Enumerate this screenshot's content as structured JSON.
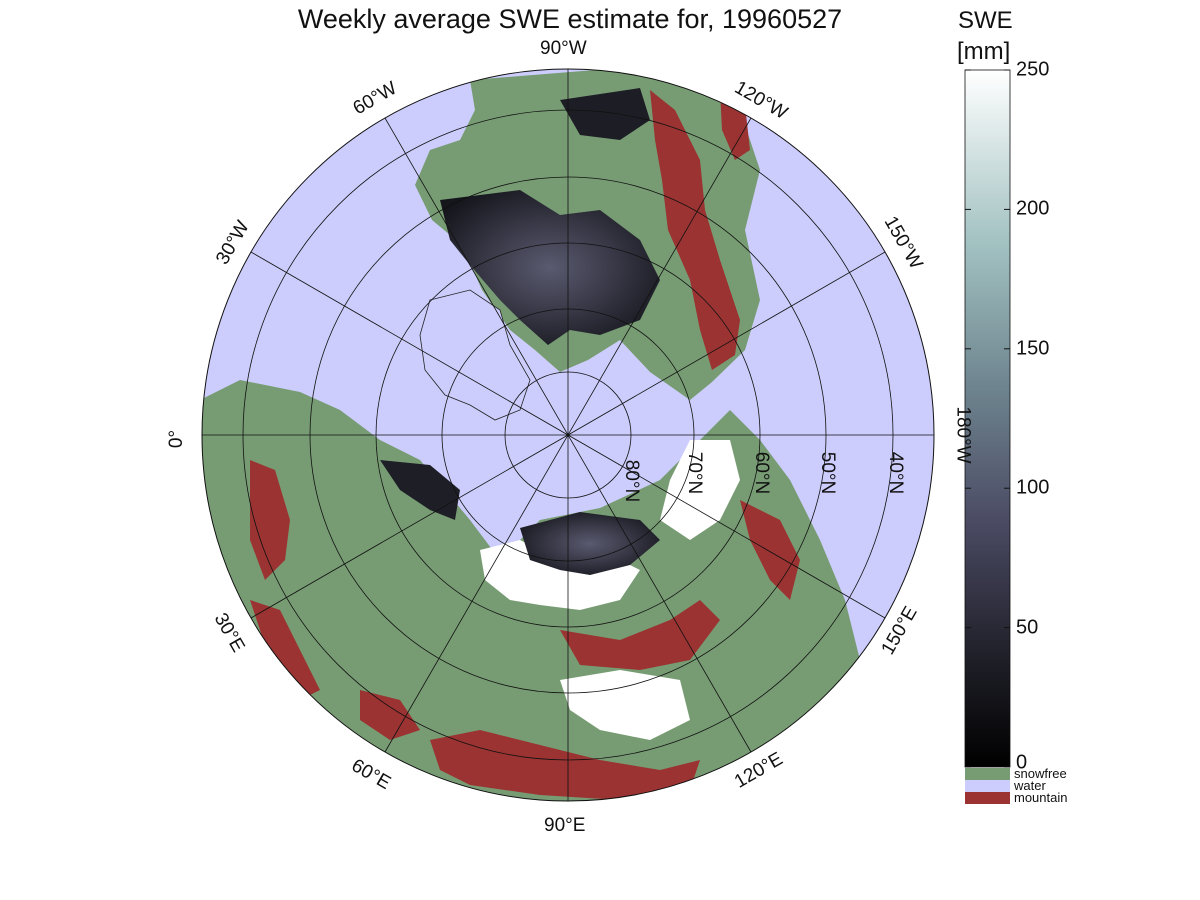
{
  "title": "Weekly average SWE estimate for, 19960527",
  "colorbar": {
    "title": "SWE",
    "unit": "[mm]",
    "ticks": [
      "0",
      "50",
      "100",
      "150",
      "200",
      "250"
    ],
    "tick_values": [
      0,
      50,
      100,
      150,
      200,
      250
    ],
    "range": [
      0,
      250
    ],
    "categories": [
      {
        "label": "snowfree",
        "color": "#779c73"
      },
      {
        "label": "water",
        "color": "#cccdfc"
      },
      {
        "label": "mountain",
        "color": "#9a3332"
      }
    ]
  },
  "map": {
    "projection": "north polar stereographic",
    "longitude_labels": {
      "lon_90W": "90°W",
      "lon_60W": "60°W",
      "lon_30W": "30°W",
      "lon_0": "0°",
      "lon_30E": "30°E",
      "lon_60E": "60°E",
      "lon_90E": "90°E",
      "lon_120E": "120°E",
      "lon_150E": "150°E",
      "lon_180W": "180°W",
      "lon_150W": "150°W",
      "lon_120W": "120°W"
    },
    "latitude_labels": {
      "lat_80N": "80°N",
      "lat_70N": "70°N",
      "lat_60N": "60°N",
      "lat_50N": "50°N",
      "lat_40N": "40°N"
    },
    "colors": {
      "water": "#cccdfc",
      "snowfree": "#779c73",
      "mountain": "#9a3332",
      "snow_low": "#1a1a22",
      "snow_mid": "#4d4d66",
      "snow_high": "#ffffff"
    }
  }
}
